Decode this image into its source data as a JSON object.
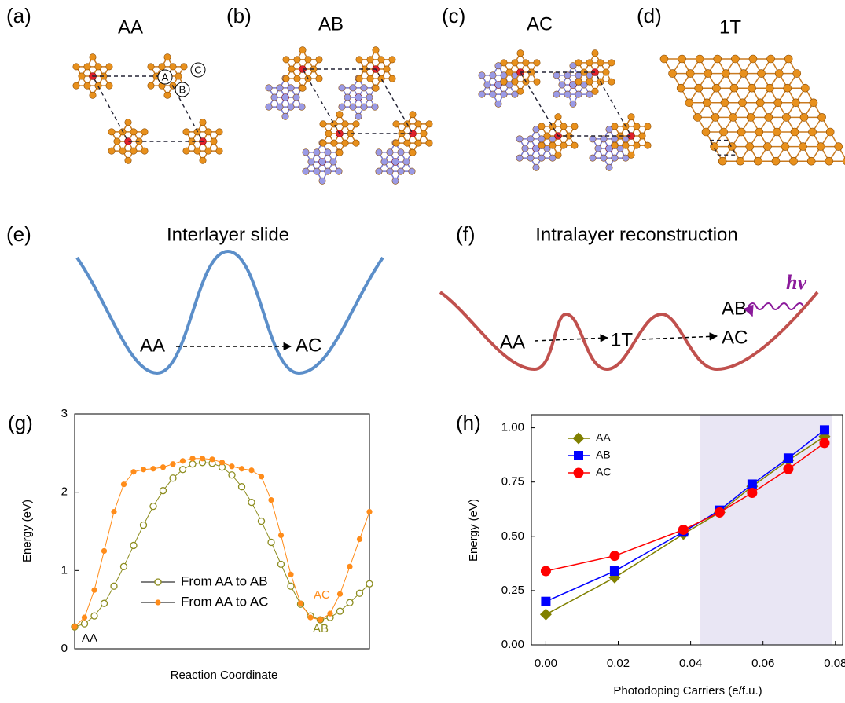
{
  "panels": {
    "a": {
      "label": "(a)",
      "title": "AA",
      "sites": [
        "A",
        "B",
        "C"
      ]
    },
    "b": {
      "label": "(b)",
      "title": "AB"
    },
    "c": {
      "label": "(c)",
      "title": "AC"
    },
    "d": {
      "label": "(d)",
      "title": "1T"
    },
    "e": {
      "label": "(e)",
      "title": "Interlayer slide",
      "states": [
        "AA",
        "AC"
      ]
    },
    "f": {
      "label": "(f)",
      "title": "Intralayer reconstruction",
      "photon": "hv",
      "states": [
        "AA",
        "1T",
        "AB",
        "AC"
      ]
    }
  },
  "chart_data": [
    {
      "type": "line",
      "panel_label": "(g)",
      "xlabel": "Reaction Coordinate",
      "ylabel": "Energy (eV)",
      "ylim": [
        0,
        3
      ],
      "yticks": [
        0,
        1,
        2,
        3
      ],
      "series": [
        {
          "name": "From AA to AB",
          "color": "#8c8c1e",
          "marker": "open-circle",
          "values": [
            0.28,
            0.32,
            0.42,
            0.58,
            0.8,
            1.05,
            1.32,
            1.58,
            1.82,
            2.02,
            2.18,
            2.29,
            2.36,
            2.38,
            2.37,
            2.32,
            2.22,
            2.07,
            1.87,
            1.63,
            1.36,
            1.08,
            0.8,
            0.57,
            0.42,
            0.37,
            0.4,
            0.48,
            0.59,
            0.71,
            0.83
          ]
        },
        {
          "name": "From AA to AC",
          "color": "#ff8c1a",
          "marker": "filled-circle",
          "values": [
            0.28,
            0.4,
            0.75,
            1.25,
            1.75,
            2.1,
            2.26,
            2.29,
            2.3,
            2.32,
            2.36,
            2.4,
            2.43,
            2.43,
            2.42,
            2.38,
            2.33,
            2.3,
            2.28,
            2.2,
            1.9,
            1.45,
            0.95,
            0.58,
            0.4,
            0.37,
            0.45,
            0.7,
            1.05,
            1.4,
            1.75
          ]
        }
      ],
      "annotations": [
        {
          "text": "AA",
          "color": "#000000"
        },
        {
          "text": "AC",
          "color": "#ff8c1a"
        },
        {
          "text": "AB",
          "color": "#8c8c1e"
        }
      ]
    },
    {
      "type": "line",
      "panel_label": "(h)",
      "xlabel": "Photodoping Carriers (e/f.u.)",
      "ylabel": "Energy (eV)",
      "x": [
        0,
        0.019,
        0.038,
        0.048,
        0.057,
        0.067,
        0.077
      ],
      "xlim": [
        -0.004,
        0.082
      ],
      "xticks": [
        {
          "value": 0,
          "label": "0.00"
        },
        {
          "value": 0.02,
          "label": "0.02"
        },
        {
          "value": 0.04,
          "label": "0.04"
        },
        {
          "value": 0.06,
          "label": "0.06"
        },
        {
          "value": 0.08,
          "label": "0.08"
        }
      ],
      "ylim": [
        0,
        1.06
      ],
      "yticks": [
        {
          "value": 0,
          "label": "0.00"
        },
        {
          "value": 0.25,
          "label": "0.25"
        },
        {
          "value": 0.5,
          "label": "0.50"
        },
        {
          "value": 0.75,
          "label": "0.75"
        },
        {
          "value": 1,
          "label": "1.00"
        }
      ],
      "shaded_x": [
        0.0427,
        0.079
      ],
      "legend": "upper-left",
      "series": [
        {
          "name": "AA",
          "color": "#808000",
          "marker": "diamond",
          "values": [
            0.14,
            0.31,
            0.51,
            0.61,
            0.73,
            0.85,
            0.96
          ]
        },
        {
          "name": "AB",
          "color": "#0000ff",
          "marker": "square",
          "values": [
            0.2,
            0.34,
            0.52,
            0.62,
            0.74,
            0.86,
            0.99
          ]
        },
        {
          "name": "AC",
          "color": "#ff0000",
          "marker": "circle",
          "values": [
            0.34,
            0.41,
            0.53,
            0.61,
            0.7,
            0.81,
            0.93
          ]
        }
      ]
    }
  ]
}
